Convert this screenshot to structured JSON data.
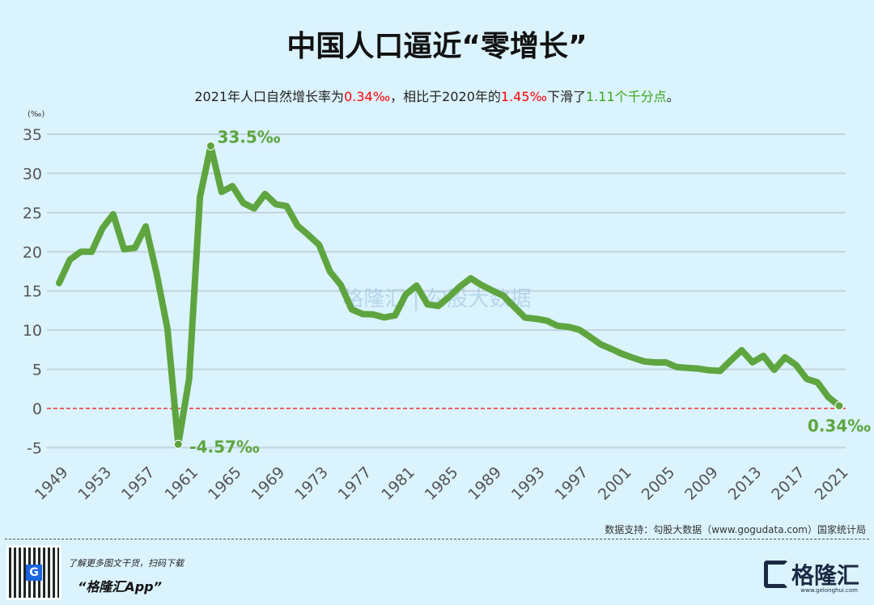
{
  "title": "中国人口逼近“零增长”",
  "subtitle": {
    "p1": "2021年人口自然增长率为",
    "v1": "0.34‰",
    "p2": "，相比于2020年的",
    "v2": "1.45‰",
    "p3": "下滑了",
    "v3": "1.11个千分点",
    "p4": "。"
  },
  "colors": {
    "line": "#5ea540",
    "zero": "#ee3333",
    "grid": "#c3d3dc",
    "highlight_red": "#ff0000",
    "highlight_green": "#3aa51a"
  },
  "chart_data": {
    "type": "line",
    "unit_label": "(‰)",
    "ylim": [
      -5,
      35
    ],
    "yticks": [
      -5,
      0,
      5,
      10,
      15,
      20,
      25,
      30,
      35
    ],
    "xlim": [
      1949,
      2021
    ],
    "xticks": [
      1949,
      1953,
      1957,
      1961,
      1965,
      1969,
      1973,
      1977,
      1981,
      1985,
      1989,
      1993,
      1997,
      2001,
      2005,
      2009,
      2013,
      2017,
      2021
    ],
    "x": [
      1949,
      1950,
      1951,
      1952,
      1953,
      1954,
      1955,
      1956,
      1957,
      1958,
      1959,
      1960,
      1961,
      1962,
      1963,
      1964,
      1965,
      1966,
      1967,
      1968,
      1969,
      1970,
      1971,
      1972,
      1973,
      1974,
      1975,
      1976,
      1977,
      1978,
      1979,
      1980,
      1981,
      1982,
      1983,
      1984,
      1985,
      1986,
      1987,
      1988,
      1989,
      1990,
      1991,
      1992,
      1993,
      1994,
      1995,
      1996,
      1997,
      1998,
      1999,
      2000,
      2001,
      2002,
      2003,
      2004,
      2005,
      2006,
      2007,
      2008,
      2009,
      2010,
      2011,
      2012,
      2013,
      2014,
      2015,
      2016,
      2017,
      2018,
      2019,
      2020,
      2021
    ],
    "values": [
      16.0,
      19.0,
      20.0,
      20.0,
      23.0,
      24.79,
      20.32,
      20.5,
      23.23,
      17.24,
      10.19,
      -4.57,
      3.78,
      26.99,
      33.5,
      27.64,
      28.38,
      26.22,
      25.53,
      27.38,
      26.08,
      25.83,
      23.33,
      22.16,
      20.89,
      17.48,
      15.77,
      12.66,
      12.06,
      12.0,
      11.61,
      11.87,
      14.55,
      15.68,
      13.29,
      13.08,
      14.26,
      15.57,
      16.61,
      15.73,
      15.04,
      14.39,
      12.98,
      11.6,
      11.45,
      11.21,
      10.55,
      10.42,
      10.06,
      9.14,
      8.18,
      7.58,
      6.95,
      6.45,
      6.01,
      5.87,
      5.89,
      5.28,
      5.17,
      5.08,
      4.87,
      4.79,
      6.13,
      7.43,
      5.9,
      6.71,
      4.93,
      6.53,
      5.58,
      3.78,
      3.32,
      1.45,
      0.34
    ],
    "annotations": [
      {
        "x": 1963,
        "y": 33.5,
        "text": "33.5‰"
      },
      {
        "x": 1960,
        "y": -4.57,
        "text": "-4.57‰"
      },
      {
        "x": 2021,
        "y": 0.34,
        "text": "0.34‰"
      }
    ],
    "reference_line": 0
  },
  "footer": {
    "source": "数据支持：勾股大数据（www.gogudata.com）国家统计局",
    "promo": "了解更多图文干货，扫码下载",
    "app": "“格隆汇App”",
    "logo": "格隆汇",
    "logo_url": "www.gelonghui.com",
    "qr_logo": "G"
  }
}
